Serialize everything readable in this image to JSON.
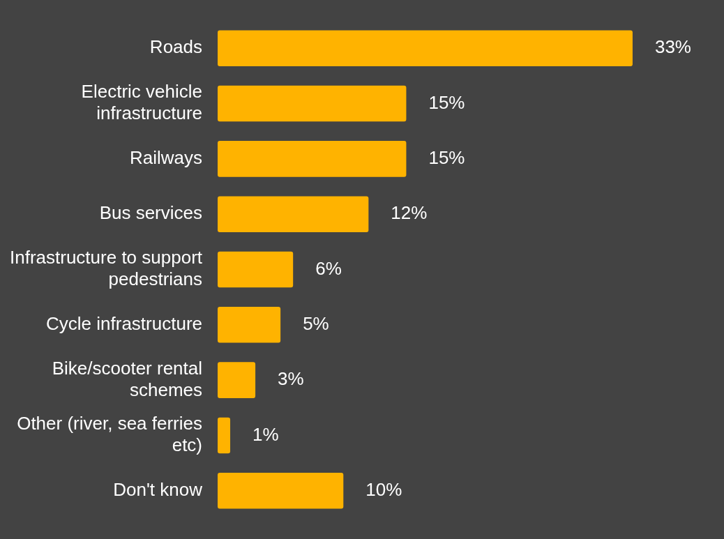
{
  "chart_data": {
    "type": "bar",
    "orientation": "horizontal",
    "categories": [
      "Roads",
      "Electric vehicle infrastructure",
      "Railways",
      "Bus services",
      "Infrastructure to support pedestrians",
      "Cycle infrastructure",
      "Bike/scooter rental schemes",
      "Other (river, sea ferries etc)",
      "Don't know"
    ],
    "values": [
      33,
      15,
      15,
      12,
      6,
      5,
      3,
      1,
      10
    ],
    "value_labels": [
      "33%",
      "15%",
      "15%",
      "12%",
      "6%",
      "5%",
      "3%",
      "1%",
      "10%"
    ],
    "color": "#ffb300",
    "legend": false
  }
}
